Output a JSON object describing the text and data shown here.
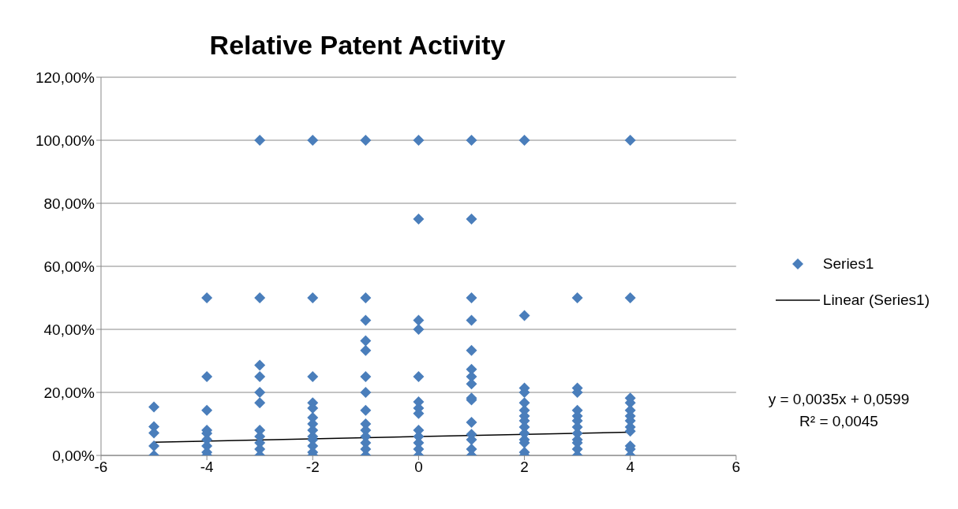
{
  "chart_data": {
    "type": "scatter",
    "title": "Relative Patent Activity",
    "xlim": [
      -6,
      6
    ],
    "xticks": [
      -6,
      -4,
      -2,
      0,
      2,
      4,
      6
    ],
    "ylim": [
      0,
      120
    ],
    "yticks": [
      {
        "value": 0,
        "label": "0,00%"
      },
      {
        "value": 20,
        "label": "20,00%"
      },
      {
        "value": 40,
        "label": "40,00%"
      },
      {
        "value": 60,
        "label": "60,00%"
      },
      {
        "value": 80,
        "label": "80,00%"
      },
      {
        "value": 100,
        "label": "100,00%"
      },
      {
        "value": 120,
        "label": "120,00%"
      }
    ],
    "grid": "y",
    "legend": "right",
    "marker": "diamond",
    "series": [
      {
        "name": "Series1",
        "color": "#4a7ebb",
        "x": [
          -5,
          -5,
          -5,
          -5,
          -5,
          -4,
          -4,
          -4,
          -4,
          -4,
          -4,
          -4,
          -4,
          -4,
          -3,
          -3,
          -3,
          -3,
          -3,
          -3,
          -3,
          -3,
          -3,
          -3,
          -3,
          -2,
          -2,
          -2,
          -2,
          -2,
          -2,
          -2,
          -2,
          -2,
          -2,
          -2,
          -2,
          -2,
          -1,
          -1,
          -1,
          -1,
          -1,
          -1,
          -1,
          -1,
          -1,
          -1,
          -1,
          -1,
          -1,
          -1,
          0,
          0,
          0,
          0,
          0,
          0,
          0,
          0,
          0,
          0,
          0,
          0,
          0,
          1,
          1,
          1,
          1,
          1,
          1,
          1,
          1,
          1,
          1,
          1,
          1,
          1,
          1,
          1,
          2,
          2,
          2,
          2,
          2,
          2,
          2,
          2,
          2,
          2,
          2,
          2,
          2,
          2,
          3,
          3,
          3,
          3,
          3,
          3,
          3,
          3,
          3,
          3,
          3,
          3,
          4,
          4,
          4,
          4,
          4,
          4,
          4,
          4,
          4,
          4,
          4,
          4
        ],
        "values": [
          15.4,
          9.1,
          7.1,
          3,
          0,
          50,
          25,
          14.3,
          8,
          7,
          5,
          3,
          1,
          0,
          100,
          50,
          28.6,
          25,
          20,
          16.7,
          8,
          6,
          4,
          2,
          0,
          100,
          50,
          25,
          16.7,
          15,
          12,
          10,
          8,
          6,
          5,
          3,
          1,
          0,
          100,
          50,
          42.9,
          36.4,
          33.3,
          25,
          20,
          14.3,
          10,
          8,
          6,
          4,
          2,
          0,
          100,
          75,
          42.9,
          40,
          25,
          17,
          15,
          13.3,
          8,
          6,
          4,
          2,
          0,
          100,
          75,
          50,
          42.9,
          33.3,
          27.3,
          25,
          22.7,
          18.2,
          17.6,
          10.5,
          6.7,
          5,
          2,
          0,
          100,
          44.4,
          21.4,
          20,
          16.7,
          14.3,
          12.5,
          11,
          9,
          7,
          5,
          4,
          1,
          0,
          50,
          21.4,
          20,
          14.3,
          12.5,
          11,
          9,
          7,
          5,
          4,
          2,
          0,
          100,
          50,
          18.2,
          16.7,
          14.3,
          12.5,
          11,
          9,
          7.7,
          3,
          2,
          0
        ]
      },
      {
        "name": "Linear (Series1)",
        "type": "line",
        "color": "#000000",
        "marker": "none",
        "x": [
          -5,
          4
        ],
        "values": [
          4.2,
          7.4
        ]
      }
    ],
    "annotations": [
      "y = 0,0035x + 0,0599",
      "R² = 0,0045"
    ]
  }
}
